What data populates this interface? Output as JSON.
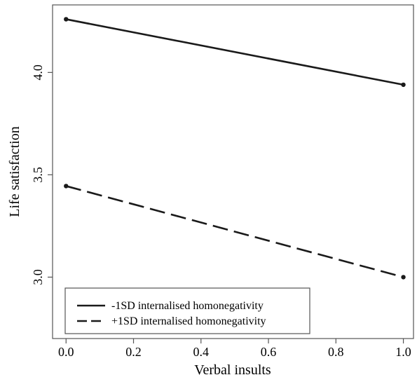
{
  "chart_data": {
    "type": "line",
    "title": "",
    "xlabel": "Verbal insults",
    "ylabel": "Life satisfaction",
    "xlim": [
      -0.04,
      1.03
    ],
    "ylim": [
      2.7,
      4.33
    ],
    "x_ticks": [
      0.0,
      0.2,
      0.4,
      0.6,
      0.8,
      1.0
    ],
    "x_tick_labels": [
      "0.0",
      "0.2",
      "0.4",
      "0.6",
      "0.8",
      "1.0"
    ],
    "y_ticks": [
      3.0,
      3.5,
      4.0
    ],
    "y_tick_labels": [
      "3.0",
      "3.5",
      "4.0"
    ],
    "grid": false,
    "legend_position": "bottom-left",
    "series": [
      {
        "name": "-1SD internalised homonegativity",
        "style": "solid",
        "color": "#1a1a1a",
        "x": [
          0.0,
          1.0
        ],
        "y": [
          4.26,
          3.94
        ]
      },
      {
        "name": "+1SD internalised homonegativity",
        "style": "dashed",
        "color": "#1a1a1a",
        "x": [
          0.0,
          1.0
        ],
        "y": [
          3.445,
          3.0
        ]
      }
    ]
  }
}
